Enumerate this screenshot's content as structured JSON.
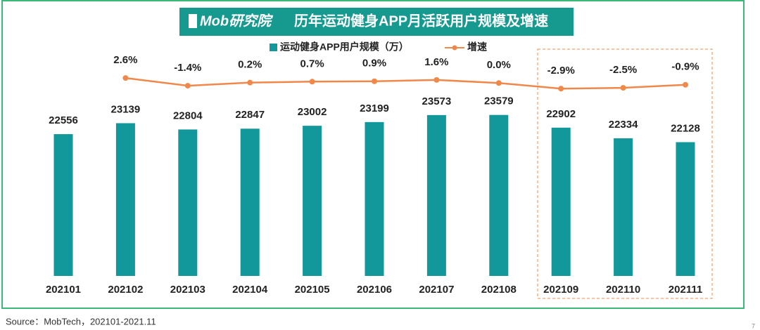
{
  "chart_data": {
    "type": "bar",
    "logo": "Mob研究院",
    "title": "历年运动健身APP月活跃用户规模及增速",
    "source": "Source：MobTech，202101-2021.11",
    "page_number": "7",
    "categories": [
      "202101",
      "202102",
      "202103",
      "202104",
      "202105",
      "202106",
      "202107",
      "202108",
      "202109",
      "202110",
      "202111"
    ],
    "series": [
      {
        "name": "运动健身APP用户规模（万）",
        "type": "bar",
        "color": "#12979a",
        "values": [
          22556,
          23139,
          22804,
          22847,
          23002,
          23199,
          23573,
          23579,
          22902,
          22334,
          22128
        ]
      },
      {
        "name": "增速",
        "type": "line",
        "axis": "y2",
        "color": "#f0884a",
        "values": [
          null,
          2.6,
          -1.4,
          0.2,
          0.7,
          0.9,
          1.6,
          0.0,
          -2.9,
          -2.5,
          -0.9
        ],
        "value_labels": [
          null,
          "2.6%",
          "-1.4%",
          "0.2%",
          "0.7%",
          "0.9%",
          "1.6%",
          "0.0%",
          "-2.9%",
          "-2.5%",
          "-0.9%"
        ]
      }
    ],
    "ylim": [
      15000,
      26000
    ],
    "y2lim": [
      -100,
      7
    ],
    "legend": "top"
  }
}
